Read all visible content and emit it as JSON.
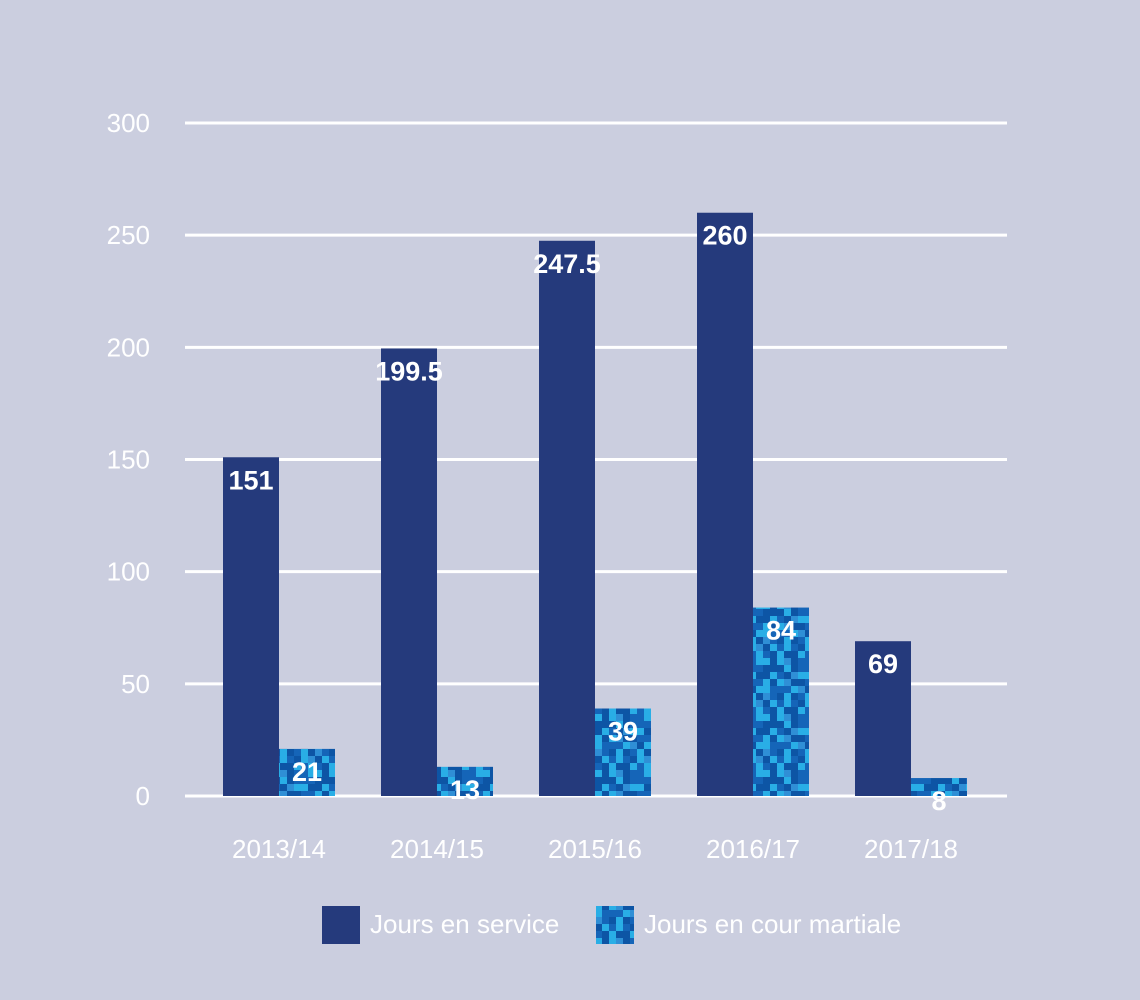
{
  "chart_data": {
    "type": "bar",
    "categories": [
      "2013/14",
      "2014/15",
      "2015/16",
      "2016/17",
      "2017/18"
    ],
    "series": [
      {
        "name": "Jours en service",
        "values": [
          151,
          199.5,
          247.5,
          260,
          69
        ],
        "labels": [
          "151",
          "199.5",
          "247.5",
          "260",
          "69"
        ],
        "color": "#253a7c"
      },
      {
        "name": "Jours en cour martiale",
        "values": [
          21,
          13,
          39,
          84,
          8
        ],
        "labels": [
          "21",
          "13",
          "39",
          "84",
          "8"
        ],
        "color": "#1565b8",
        "pattern": "pixel-camouflage"
      }
    ],
    "title": "",
    "xlabel": "",
    "ylabel": "",
    "ylim": [
      0,
      300
    ],
    "yticks": [
      0,
      50,
      100,
      150,
      200,
      250,
      300
    ],
    "ytick_labels": [
      "0",
      "50",
      "100",
      "150",
      "200",
      "250",
      "300"
    ],
    "grid": true,
    "legend": "bottom",
    "colors": {
      "background": "#cbcedf",
      "grid": "#ffffff",
      "text": "#ffffff",
      "camo_light": "#29aee6",
      "camo_dark": "#0d55a5"
    }
  }
}
